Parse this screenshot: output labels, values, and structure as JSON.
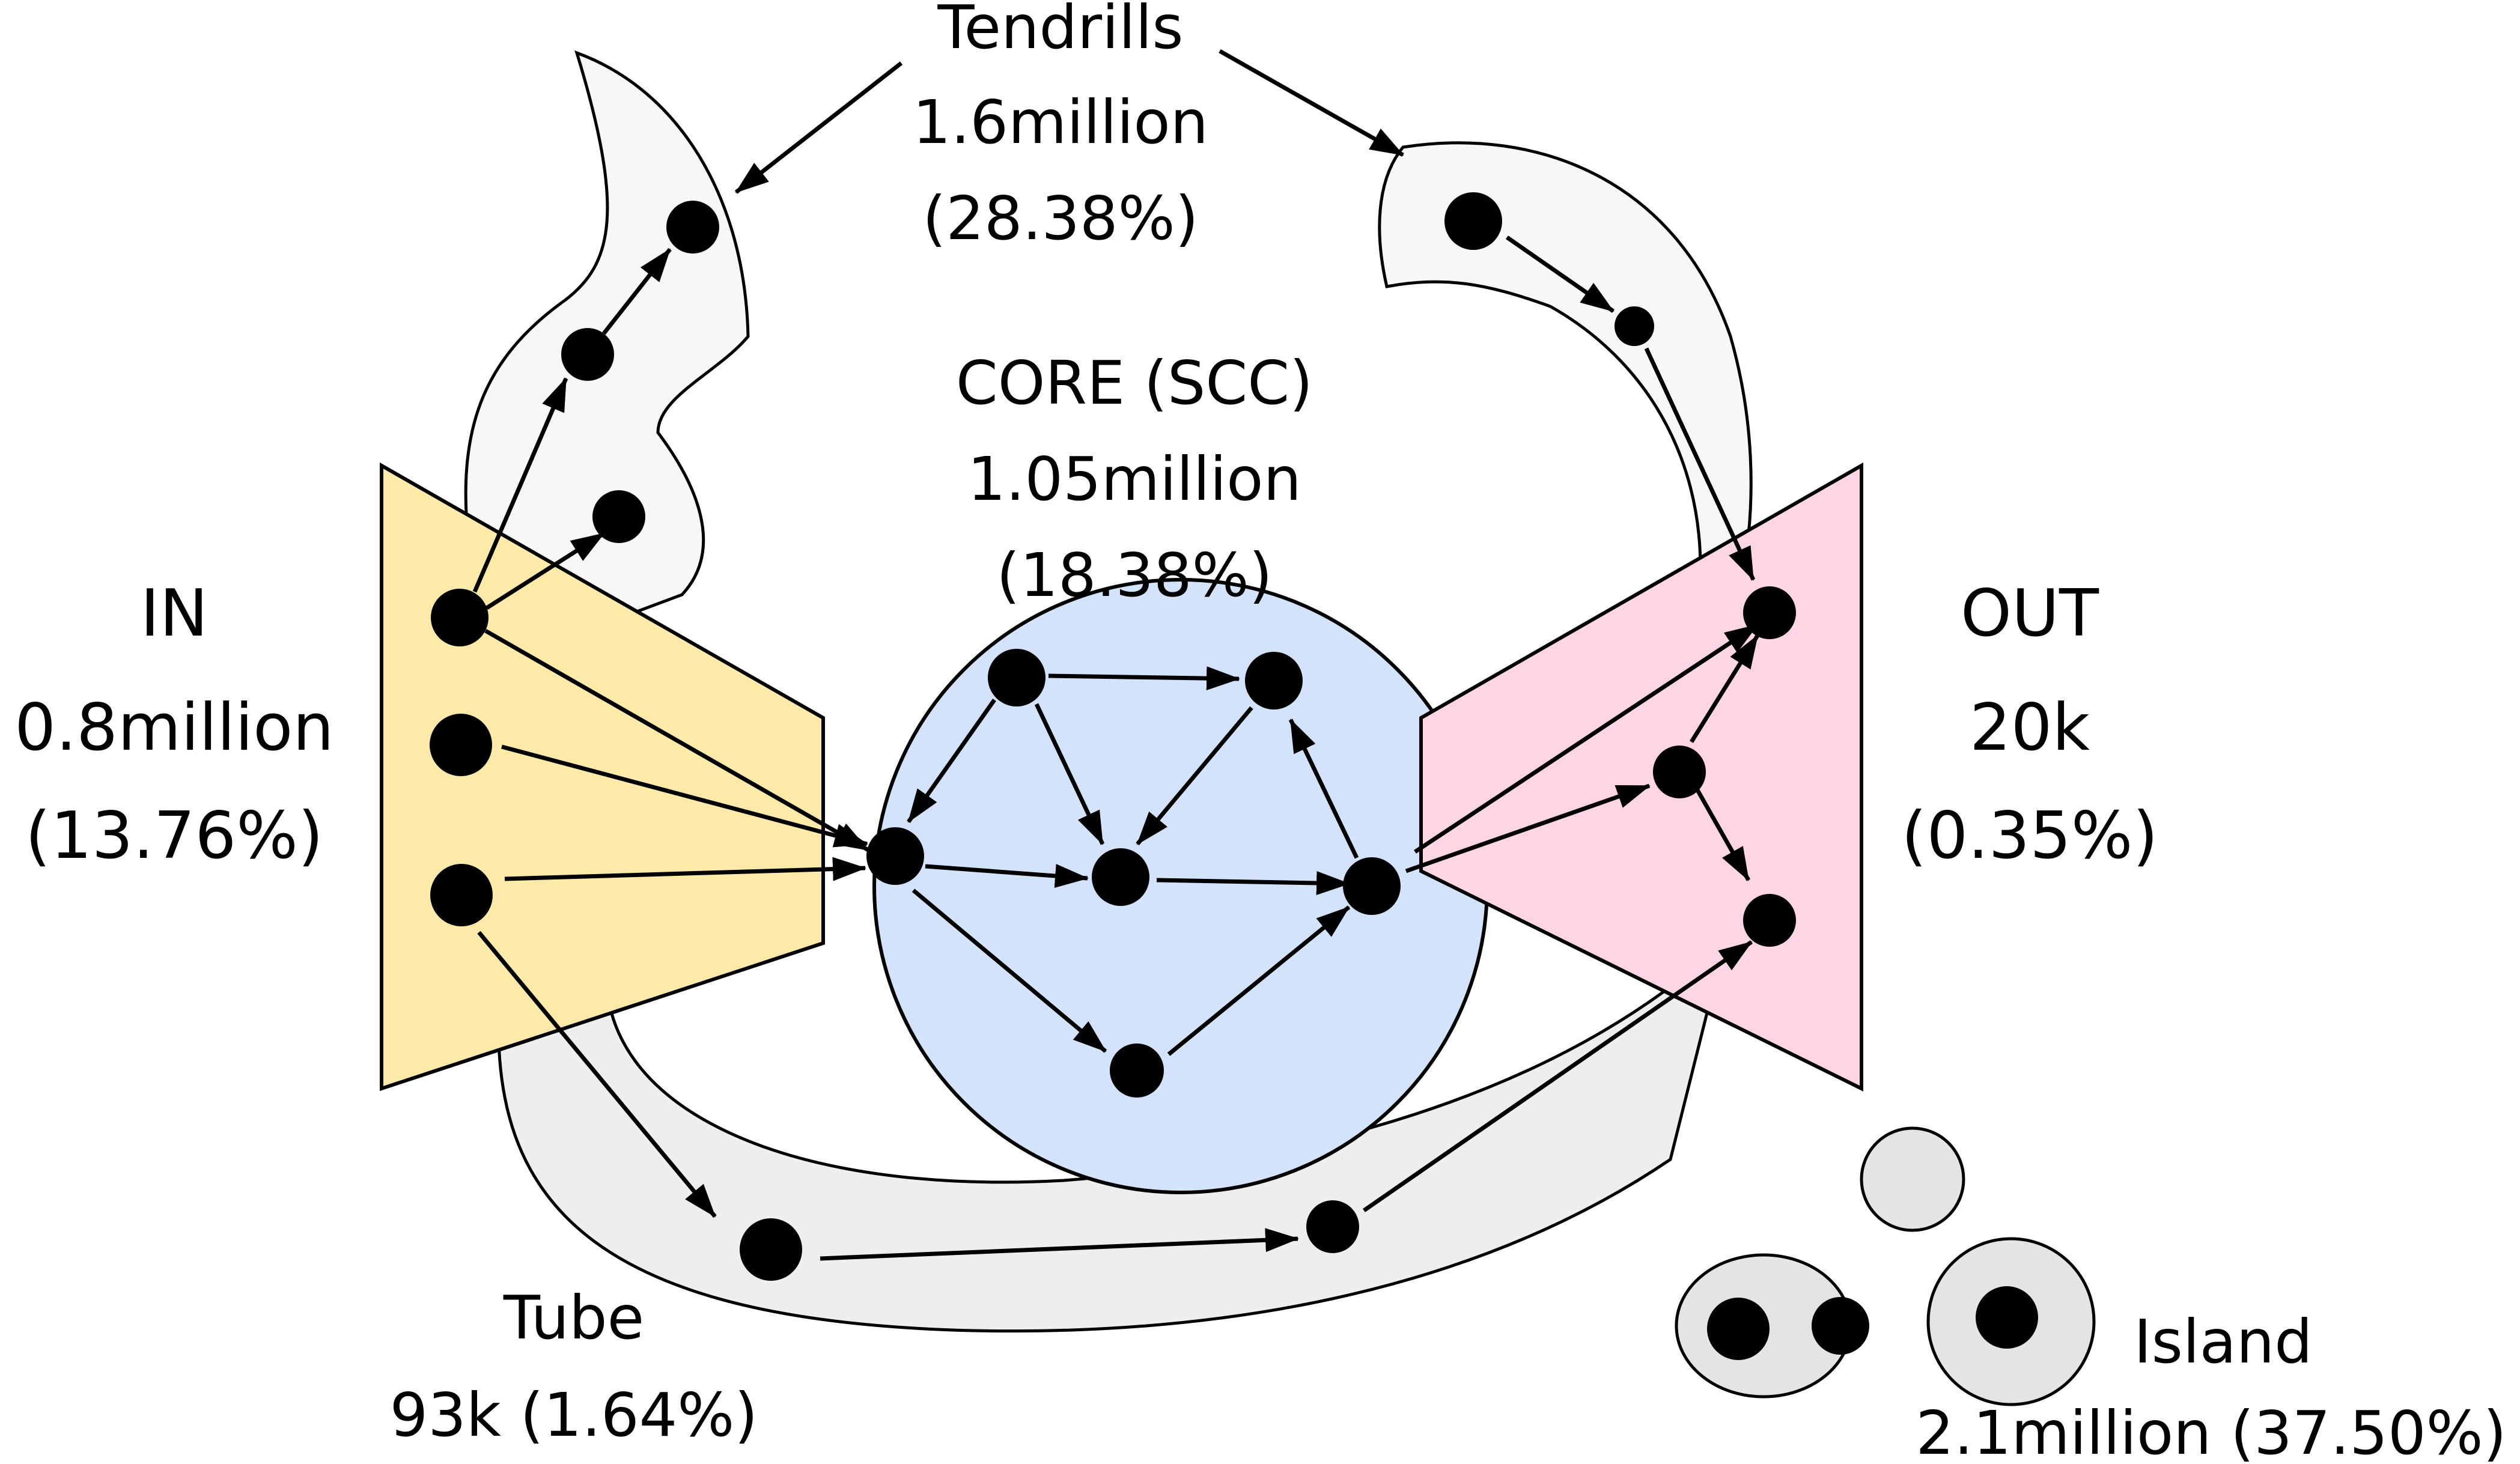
{
  "colors": {
    "in_fill": "#fdeaa8",
    "core_fill": "#d3e3fb",
    "out_fill": "#fdd5e5",
    "tendril_fill": "#f7f7f7",
    "tube_fill": "#eeeeee",
    "island_fill": "#e4e4e4",
    "node": "#000000"
  },
  "labels": {
    "in": {
      "name": "IN",
      "count": "0.8million",
      "percent": "(13.76%)"
    },
    "out": {
      "name": "OUT",
      "count": "20k",
      "percent": "(0.35%)"
    },
    "core": {
      "name": "CORE (SCC)",
      "count": "1.05million",
      "percent": "(18.38%)"
    },
    "tendrils": {
      "name": "Tendrills",
      "count": "1.6million",
      "percent": "(28.38%)"
    },
    "tube": {
      "name": "Tube",
      "count_percent": "93k (1.64%)"
    },
    "island": {
      "name": "Island",
      "count_percent": "2.1million (37.50%)"
    }
  },
  "icons": {
    "in_region": "trapezoid",
    "out_region": "trapezoid",
    "core_region": "circle",
    "nodes": "filled-circle",
    "edges": "arrow"
  }
}
